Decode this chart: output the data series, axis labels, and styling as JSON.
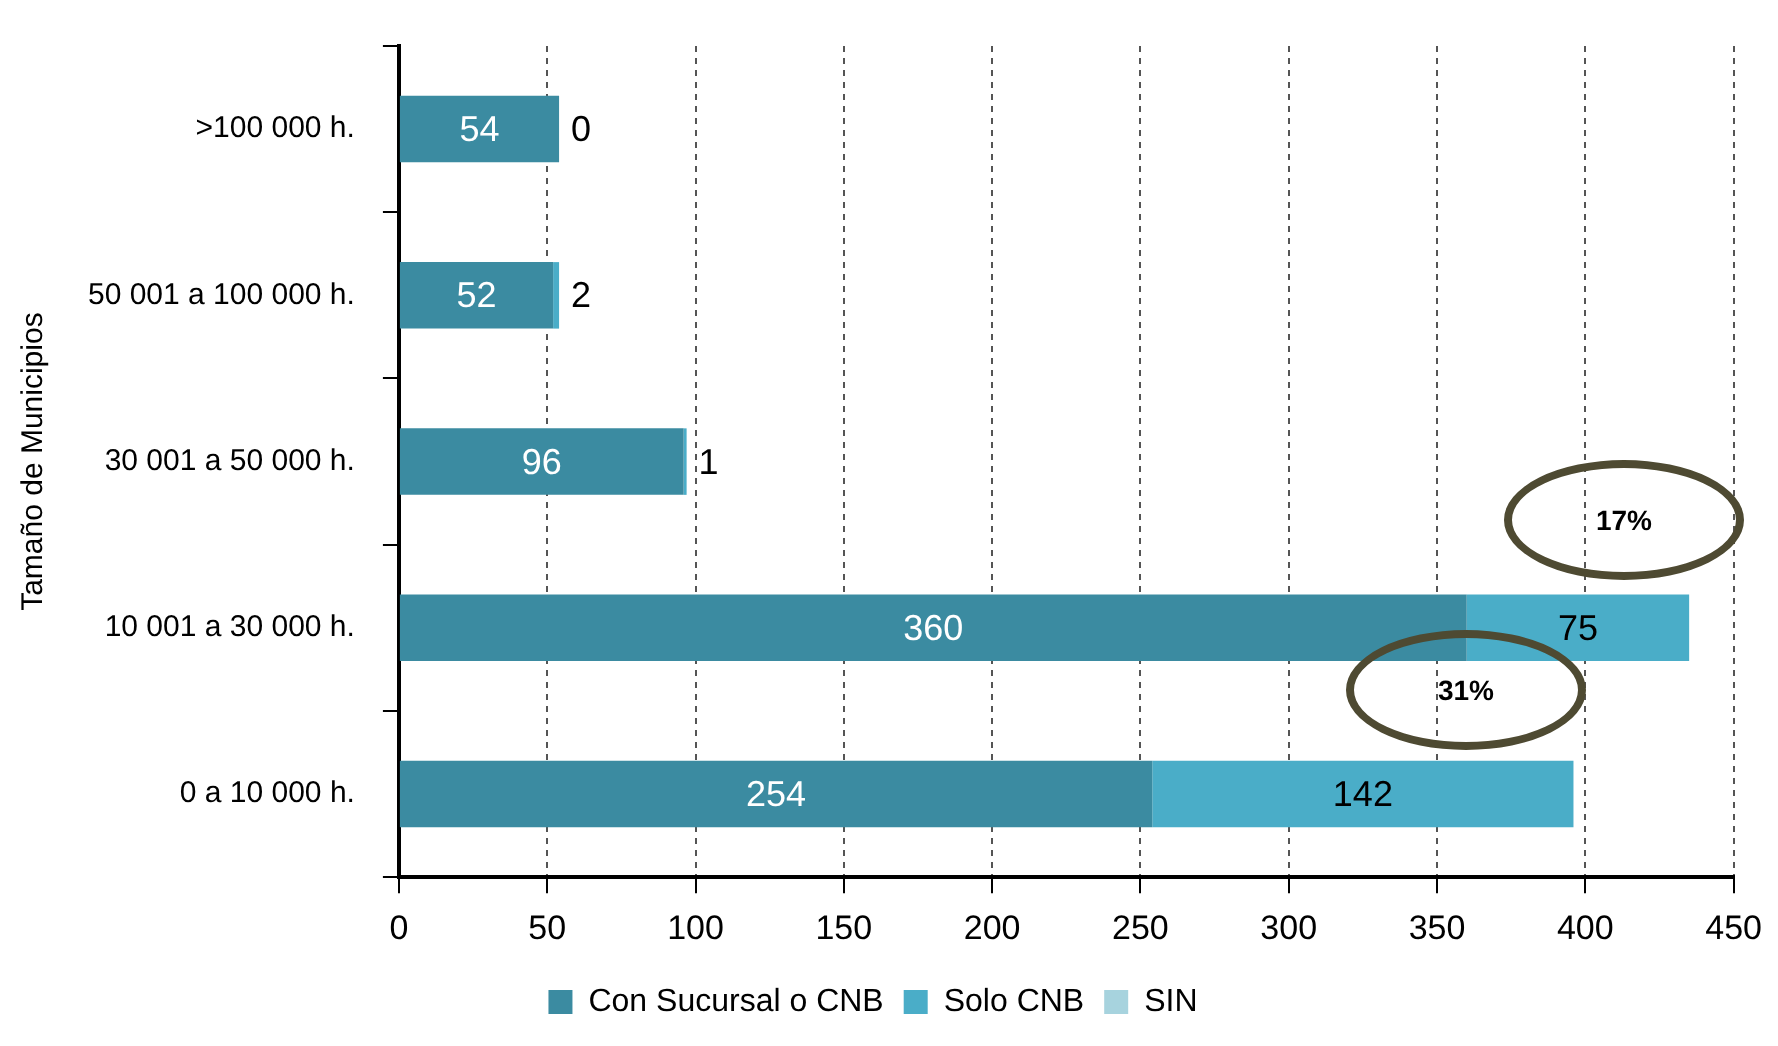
{
  "chart_data": {
    "type": "bar",
    "orientation": "horizontal",
    "stacked": true,
    "categories": [
      ">100 000 h.",
      "50 001 a 100 000 h.",
      "30 001 a 50 000 h.",
      "10 001 a 30 000 h.",
      "0 a 10 000 h."
    ],
    "series": [
      {
        "name": "Con Sucursal o CNB",
        "color": "#3b8ba1",
        "values": [
          54,
          52,
          96,
          360,
          254
        ],
        "value_labels": [
          "54",
          "52",
          "96",
          "360",
          "254"
        ]
      },
      {
        "name": "Solo CNB",
        "color": "#4aadc8",
        "values": [
          0,
          2,
          1,
          75,
          142
        ],
        "value_labels": [
          "0",
          "2",
          "1",
          "75",
          "142"
        ]
      },
      {
        "name": "SIN",
        "color": "#a7d3de",
        "values": [
          0,
          0,
          0,
          0,
          0
        ]
      }
    ],
    "ylabel": "Tamaño de Municipios",
    "xlim": [
      0,
      450
    ],
    "xticks": [
      0,
      50,
      100,
      150,
      200,
      250,
      300,
      350,
      400,
      450
    ],
    "grid": "x",
    "legend": "bottom",
    "annotations": [
      "17%",
      "31%"
    ]
  }
}
